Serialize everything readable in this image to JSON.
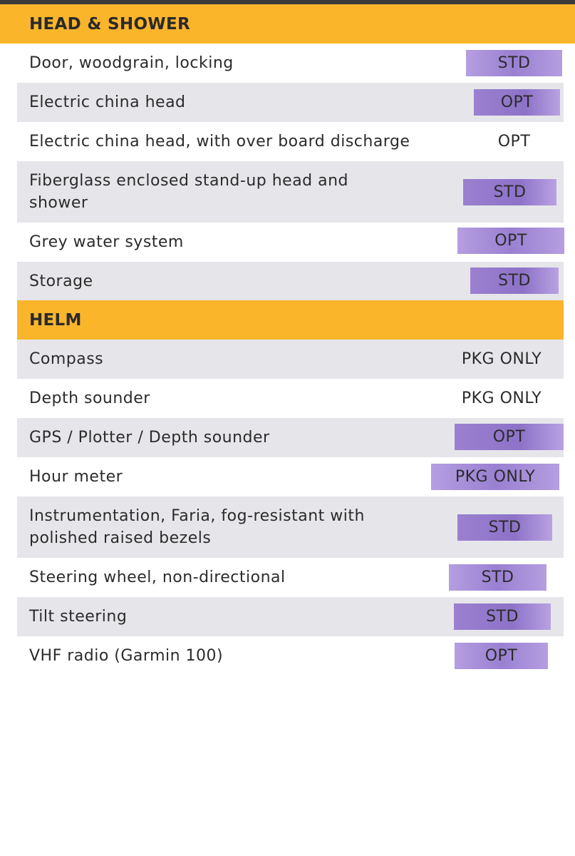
{
  "sections": [
    {
      "title": "HEAD & SHOWER",
      "rows": [
        {
          "label": "Door, woodgrain, locking",
          "value": "STD"
        },
        {
          "label": "Electric china head",
          "value": "OPT"
        },
        {
          "label": "Electric china head, with over board discharge",
          "value": "OPT"
        },
        {
          "label": "Fiberglass enclosed stand-up head and shower",
          "value": "STD"
        },
        {
          "label": "Grey water system",
          "value": "OPT"
        },
        {
          "label": "Storage",
          "value": "STD"
        }
      ]
    },
    {
      "title": "HELM",
      "rows": [
        {
          "label": "Compass",
          "value": "PKG ONLY"
        },
        {
          "label": "Depth sounder",
          "value": "PKG ONLY"
        },
        {
          "label": "GPS / Plotter / Depth sounder",
          "value": "OPT"
        },
        {
          "label": "Hour meter",
          "value": "PKG ONLY"
        },
        {
          "label": "Instrumentation, Faria, fog-resistant with polished raised bezels",
          "value": "STD"
        },
        {
          "label": "Steering wheel, non-directional",
          "value": "STD"
        },
        {
          "label": "Tilt steering",
          "value": "STD"
        },
        {
          "label": "VHF radio (Garmin 100)",
          "value": "OPT"
        }
      ]
    }
  ]
}
